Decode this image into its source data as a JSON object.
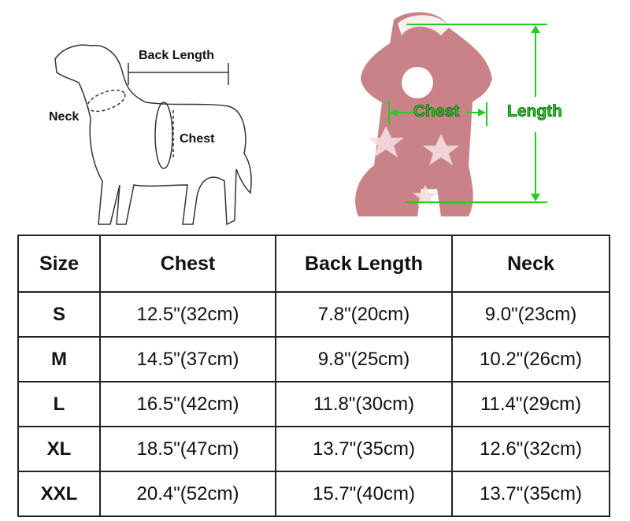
{
  "dog_diagram": {
    "labels": {
      "back_length": "Back Length",
      "neck": "Neck",
      "chest": "Chest"
    }
  },
  "garment_diagram": {
    "labels": {
      "chest": "Chest",
      "length": "Length"
    },
    "annotation_color": "#22cc22",
    "garment_color": "#c98388"
  },
  "size_table": {
    "headers": [
      "Size",
      "Chest",
      "Back Length",
      "Neck"
    ],
    "rows": [
      [
        "S",
        "12.5\"(32cm)",
        "7.8\"(20cm)",
        "9.0\"(23cm)"
      ],
      [
        "M",
        "14.5\"(37cm)",
        "9.8\"(25cm)",
        "10.2\"(26cm)"
      ],
      [
        "L",
        "16.5\"(42cm)",
        "11.8\"(30cm)",
        "11.4\"(29cm)"
      ],
      [
        "XL",
        "18.5\"(47cm)",
        "13.7\"(35cm)",
        "12.6\"(32cm)"
      ],
      [
        "XXL",
        "20.4\"(52cm)",
        "15.7\"(40cm)",
        "13.7\"(35cm)"
      ]
    ]
  }
}
